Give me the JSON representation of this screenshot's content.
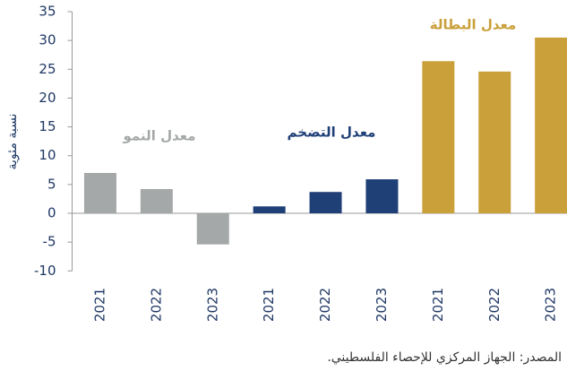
{
  "chart_data": {
    "type": "bar",
    "y_label": "نسبة مئوية",
    "source": "المصدر: الجهاز المركزي للإحصاء الفلسطيني.",
    "categories": [
      "2021",
      "2022",
      "2023",
      "2021",
      "2022",
      "2023",
      "2021",
      "2022",
      "2023"
    ],
    "series": [
      {
        "name": "معدل النمو",
        "color": "#a5a8a8",
        "values": [
          7.0,
          4.2,
          -5.4,
          null,
          null,
          null,
          null,
          null,
          null
        ]
      },
      {
        "name": "معدل التضخم",
        "color": "#1f3f77",
        "values": [
          null,
          null,
          null,
          1.2,
          3.7,
          5.9,
          null,
          null,
          null
        ]
      },
      {
        "name": "معدل البطالة",
        "color": "#c9a03a",
        "values": [
          null,
          null,
          null,
          null,
          null,
          null,
          26.4,
          24.6,
          30.5
        ]
      }
    ],
    "ylim": [
      -10,
      35
    ],
    "yticks": [
      -10,
      -5,
      0,
      5,
      10,
      15,
      20,
      25,
      30,
      35
    ]
  }
}
